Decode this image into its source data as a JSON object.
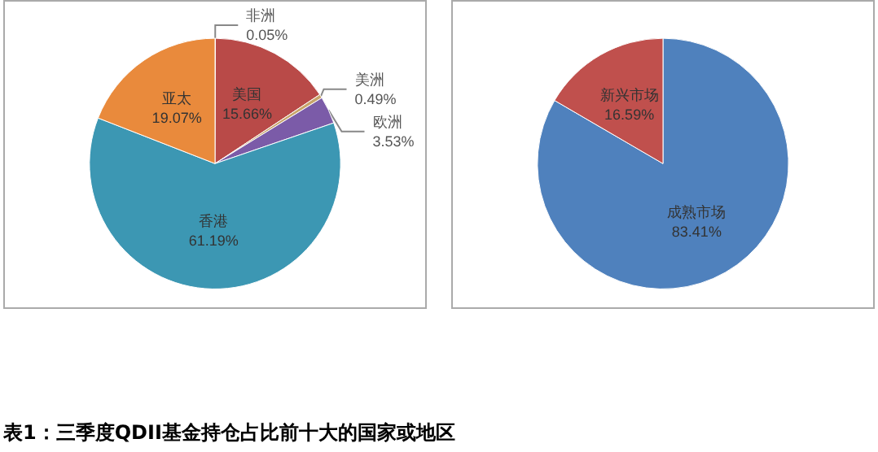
{
  "chart_data": [
    {
      "type": "pie",
      "categories": [
        "非洲",
        "美国",
        "美洲",
        "欧洲",
        "香港",
        "亚太"
      ],
      "values": [
        0.05,
        15.66,
        0.49,
        3.53,
        61.19,
        19.07
      ],
      "colors": [
        "#4a7ebb",
        "#b94a48",
        "#c8a46a",
        "#7b5ba8",
        "#3c97b3",
        "#e98a3c"
      ],
      "value_labels": [
        "0.05%",
        "15.66%",
        "0.49%",
        "3.53%",
        "61.19%",
        "19.07%"
      ],
      "legend": false
    },
    {
      "type": "pie",
      "categories": [
        "成熟市场",
        "新兴市场"
      ],
      "values": [
        83.41,
        16.59
      ],
      "colors": [
        "#4f81bd",
        "#c0504d"
      ],
      "value_labels": [
        "83.41%",
        "16.59%"
      ],
      "legend": false,
      "annotations": [
        "表1：三季度QDII基金持仓占比前十大的国家或地区"
      ]
    }
  ]
}
